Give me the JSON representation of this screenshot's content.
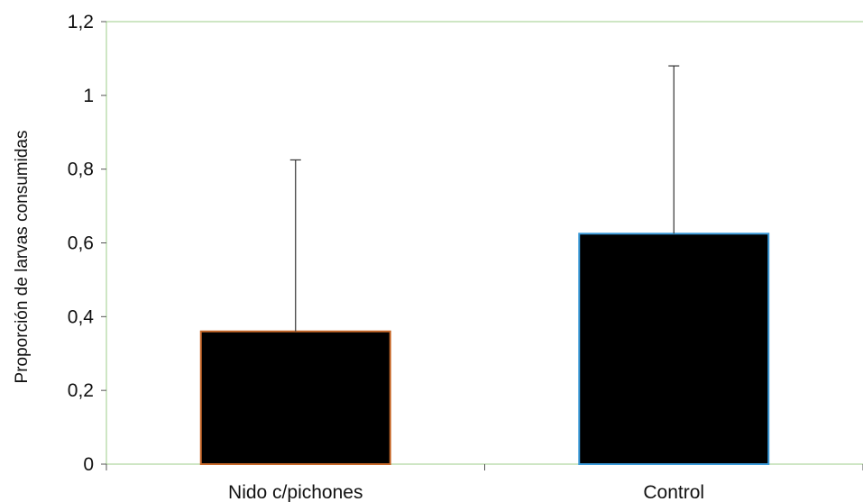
{
  "chart_data": {
    "type": "bar",
    "categories": [
      "Nido c/pichones",
      "Control"
    ],
    "series": [
      {
        "values": [
          0.36,
          0.625
        ],
        "error_upper": [
          0.825,
          1.08
        ],
        "bar_fill": "#000000",
        "bar_edges": [
          "#c8692a",
          "#3a9ad9"
        ]
      }
    ],
    "xlabel": "",
    "ylabel": "Proporción de larvas consumidas",
    "ylim": [
      0,
      1.2
    ],
    "yticks": [
      "0",
      "0,2",
      "0,4",
      "0,6",
      "0,8",
      "1",
      "1,2"
    ],
    "grid": false,
    "frame_color": "#9ccc88",
    "legend": "none"
  }
}
